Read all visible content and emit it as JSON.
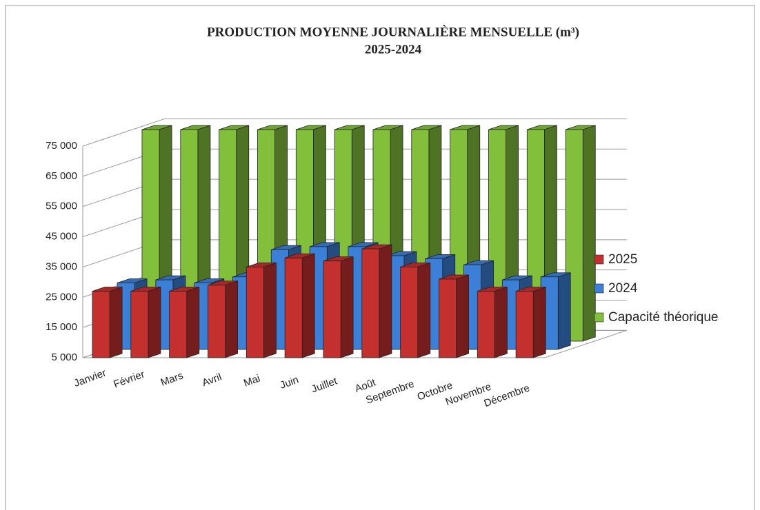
{
  "chart_data": {
    "type": "bar3d",
    "title": "PRODUCTION MOYENNE JOURNALIÈRE MENSUELLE (m³)",
    "subtitle": "2025-2024",
    "categories": [
      "Janvier",
      "Février",
      "Mars",
      "Avril",
      "Mai",
      "Juin",
      "Juillet",
      "Août",
      "Septembre",
      "Octobre",
      "Novembre",
      "Décembre"
    ],
    "series": [
      {
        "name": "2025",
        "color": "#c3302e",
        "values": [
          27000,
          27000,
          27000,
          29000,
          35000,
          38000,
          37000,
          41000,
          35000,
          31000,
          27000,
          27000
        ]
      },
      {
        "name": "2024",
        "color": "#3b80d6",
        "values": [
          27000,
          28000,
          27000,
          29000,
          38000,
          39000,
          39000,
          36000,
          35000,
          33000,
          28000,
          29000
        ]
      },
      {
        "name": "Capacité théorique",
        "color": "#82c03c",
        "values": [
          75000,
          75000,
          75000,
          75000,
          75000,
          75000,
          75000,
          75000,
          75000,
          75000,
          75000,
          75000
        ]
      }
    ],
    "ylim": [
      5000,
      75000
    ],
    "yticks": [
      {
        "value": 5000,
        "label": "5 000"
      },
      {
        "value": 15000,
        "label": "15 000"
      },
      {
        "value": 25000,
        "label": "25 000"
      },
      {
        "value": 35000,
        "label": "35 000"
      },
      {
        "value": 45000,
        "label": "45 000"
      },
      {
        "value": 55000,
        "label": "55 000"
      },
      {
        "value": 65000,
        "label": "65 000"
      },
      {
        "value": 75000,
        "label": "75 000"
      }
    ],
    "grid": true,
    "legend": "right"
  }
}
